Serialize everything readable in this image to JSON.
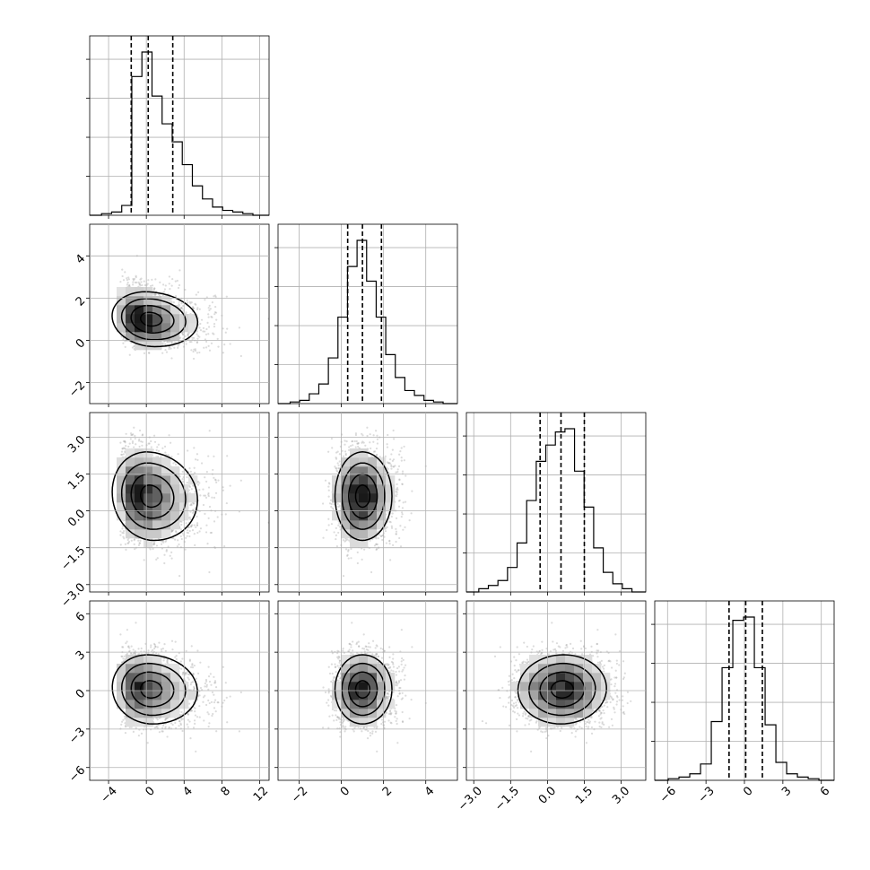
{
  "chart_data": {
    "type": "corner",
    "title": "",
    "parameters": [
      {
        "mean": 0.4,
        "sd": 2.0,
        "skew": 1.0,
        "range": [
          -6,
          13
        ],
        "ticks": [
          -4,
          0,
          4,
          8,
          12
        ],
        "tick_labels": [
          "−4",
          "0",
          "4",
          "8",
          "12"
        ],
        "quantiles": [
          -1.6,
          0.2,
          2.8
        ],
        "hist": [
          0.0,
          0.01,
          0.02,
          0.06,
          0.85,
          1.0,
          0.73,
          0.56,
          0.45,
          0.31,
          0.18,
          0.1,
          0.05,
          0.03,
          0.02,
          0.01,
          0.0
        ]
      },
      {
        "mean": 1.0,
        "sd": 0.65,
        "skew": 0.3,
        "range": [
          -3,
          5.5
        ],
        "ticks": [
          -2,
          0,
          2,
          4
        ],
        "tick_labels": [
          "−2",
          "0",
          "2",
          "4"
        ],
        "quantiles": [
          0.3,
          1.0,
          1.9
        ],
        "hist": [
          0.0,
          0.01,
          0.02,
          0.06,
          0.12,
          0.28,
          0.53,
          0.84,
          1.0,
          0.75,
          0.53,
          0.3,
          0.16,
          0.08,
          0.05,
          0.02,
          0.01,
          0.0
        ]
      },
      {
        "mean": 0.6,
        "sd": 0.9,
        "skew": 0.0,
        "range": [
          -3.3,
          4.0
        ],
        "ticks": [
          -3.0,
          -1.5,
          0.0,
          1.5,
          3.0
        ],
        "tick_labels": [
          "−3.0",
          "−1.5",
          "0.0",
          "1.5",
          "3.0"
        ],
        "quantiles": [
          -0.3,
          0.55,
          1.5
        ],
        "hist": [
          0.0,
          0.02,
          0.04,
          0.07,
          0.15,
          0.3,
          0.56,
          0.8,
          0.9,
          0.98,
          1.0,
          0.74,
          0.52,
          0.27,
          0.12,
          0.05,
          0.02,
          0.0
        ]
      },
      {
        "mean": 0.1,
        "sd": 1.35,
        "skew": 0.0,
        "range": [
          -7,
          7
        ],
        "ticks": [
          -6,
          -3,
          0,
          3,
          6
        ],
        "tick_labels": [
          "−6",
          "−3",
          "0",
          "3",
          "6"
        ],
        "quantiles": [
          -1.2,
          0.1,
          1.4
        ],
        "hist": [
          0.0,
          0.01,
          0.02,
          0.04,
          0.1,
          0.36,
          0.69,
          0.98,
          1.0,
          0.69,
          0.34,
          0.11,
          0.04,
          0.02,
          0.01,
          0.0
        ]
      }
    ],
    "pairs": [
      {
        "row": 1,
        "col": 0,
        "corr": -0.2
      },
      {
        "row": 2,
        "col": 0,
        "corr": -0.15
      },
      {
        "row": 2,
        "col": 1,
        "corr": 0.0
      },
      {
        "row": 3,
        "col": 0,
        "corr": -0.1
      },
      {
        "row": 3,
        "col": 1,
        "corr": 0.0
      },
      {
        "row": 3,
        "col": 2,
        "corr": 0.05
      }
    ],
    "y_tick_labels": {
      "row1": [
        "−2",
        "0",
        "2",
        "4"
      ],
      "row2": [
        "−3.0",
        "−1.5",
        "0.0",
        "1.5",
        "3.0"
      ],
      "row3": [
        "−6",
        "−3",
        "0",
        "3",
        "6"
      ]
    },
    "grid": true,
    "legend": "none",
    "colors": {
      "line": "#000000",
      "scatter": "#9a9a9a",
      "density": "#000000"
    }
  }
}
